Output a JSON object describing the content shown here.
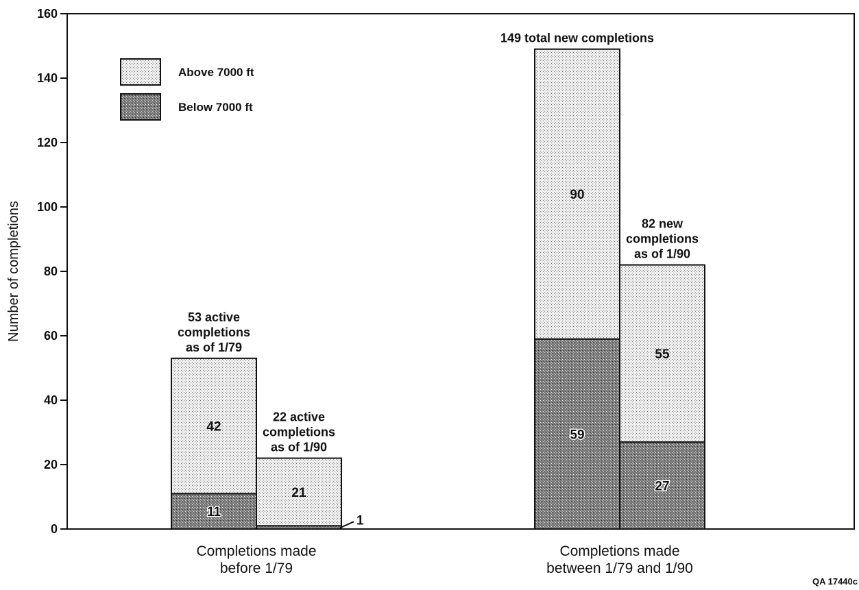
{
  "chart_data": {
    "type": "bar",
    "stacked": true,
    "ylabel": "Number of completions",
    "ylim": [
      0,
      160
    ],
    "yticks": [
      0,
      20,
      40,
      60,
      80,
      100,
      120,
      140,
      160
    ],
    "grid": false,
    "legend_position": "top-left",
    "groups": [
      {
        "label": [
          "Completions made",
          "before 1/79"
        ],
        "bars": [
          {
            "annotation": [
              "53 active",
              "completions",
              "as of 1/79"
            ],
            "below": 11,
            "above": 42,
            "below_label": "11",
            "above_label": "42"
          },
          {
            "annotation": [
              "22 active",
              "completions",
              "as of 1/90"
            ],
            "below": 1,
            "above": 21,
            "below_label": "1",
            "above_label": "21"
          }
        ]
      },
      {
        "label": [
          "Completions made",
          "between 1/79 and 1/90"
        ],
        "bars": [
          {
            "annotation": [
              "149 total new completions"
            ],
            "below": 59,
            "above": 90,
            "below_label": "59",
            "above_label": "90"
          },
          {
            "annotation": [
              "82 new",
              "completions",
              "as of 1/90"
            ],
            "below": 27,
            "above": 55,
            "below_label": "27",
            "above_label": "55"
          }
        ]
      }
    ],
    "series": [
      {
        "key": "above",
        "name": "Above 7000 ft",
        "color": "#e4e4e4"
      },
      {
        "key": "below",
        "name": "Below 7000 ft",
        "color": "#8a8a8a"
      }
    ],
    "footnote": "QA 17440c"
  }
}
